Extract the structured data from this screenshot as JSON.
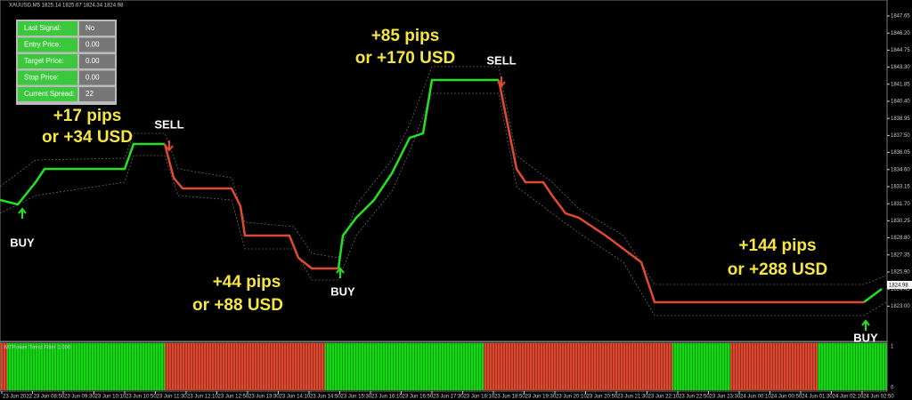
{
  "header": {
    "symbol": "XAUUSD,M5  1825.14 1825.67 1824.34 1824.98"
  },
  "panel": {
    "rows": [
      [
        "Last Signal:",
        "No"
      ],
      [
        "Entry Price:",
        "0.00"
      ],
      [
        "Target Price:",
        "0.00"
      ],
      [
        "Stop Price:",
        "0.00"
      ],
      [
        "Current Spread:",
        "22"
      ]
    ]
  },
  "annotations": [
    {
      "lines": [
        "+17 pips",
        "or +34 USD"
      ]
    },
    {
      "lines": [
        "+85 pips",
        "or +170 USD"
      ]
    },
    {
      "lines": [
        "+44 pips",
        "or +88 USD"
      ]
    },
    {
      "lines": [
        "+144 pips",
        "or +288 USD"
      ]
    }
  ],
  "signals": [
    "BUY",
    "SELL",
    "BUY",
    "SELL",
    "BUY"
  ],
  "price_axis": [
    "1847.65",
    "1846.20",
    "1844.75",
    "1843.30",
    "1841.85",
    "1840.40",
    "1838.95",
    "1837.50",
    "1836.05",
    "1834.60",
    "1833.15",
    "1831.70",
    "1830.25",
    "1828.80",
    "1827.35",
    "1825.90",
    "1824.45",
    "1823.00"
  ],
  "current_price": "1824.98",
  "indicator": {
    "title": "MTPower Trend Filter 1.000",
    "axis": [
      "1",
      "0"
    ]
  },
  "time_axis": [
    "23 Jun 2022",
    "23 Jun 08:50",
    "23 Jun 09:30",
    "23 Jun 10:10",
    "23 Jun 10:50",
    "23 Jun 11:30",
    "23 Jun 12:10",
    "23 Jun 12:50",
    "23 Jun 13:30",
    "23 Jun 14:10",
    "23 Jun 14:50",
    "23 Jun 15:30",
    "23 Jun 16:10",
    "23 Jun 16:50",
    "23 Jun 17:30",
    "23 Jun 18:10",
    "23 Jun 18:50",
    "23 Jun 19:30",
    "23 Jun 20:10",
    "23 Jun 20:50",
    "23 Jun 21:30",
    "23 Jun 22:10",
    "23 Jun 22:50",
    "23 Jun 23:30",
    "24 Jun 00:10",
    "24 Jun 00:50",
    "24 Jun 01:30",
    "24 Jun 02:10",
    "24 Jun 02:50"
  ]
}
